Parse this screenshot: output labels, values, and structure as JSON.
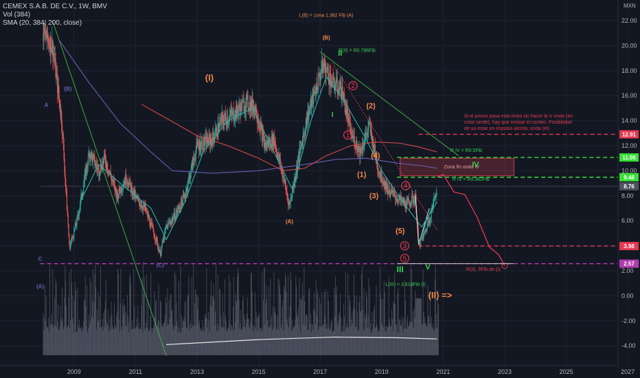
{
  "header": {
    "symbol_line": "CEMEX S.A.B. DE C.V., 1W, BMV",
    "volume_line": "Vol (384)",
    "sma_line": "SMA (20, 384, 200, close)"
  },
  "colors": {
    "background": "#131722",
    "grid": "#1f2330",
    "axis_text": "#b2b5be",
    "candle_up": "#26a69a",
    "candle_down": "#ef5350",
    "sma20": "#2bb3a8",
    "sma384": "#6a5fb0",
    "sma200": "#d84a4a",
    "wave_orange": "#f0894a",
    "wave_green": "#39d353",
    "projection": "#e53950",
    "resistance": "#e53950",
    "fib_green": "#38e038",
    "volume": "#7f8391",
    "volume_sma": "#e8e8e8"
  },
  "chart_data": {
    "type": "candlestick",
    "currency_label": "MXN",
    "x_ticks": [
      "2009",
      "2011",
      "2013",
      "2015",
      "2017",
      "2019",
      "2021",
      "2023",
      "2025",
      "2027"
    ],
    "y_ticks": [
      "22.00",
      "20.00",
      "18.00",
      "16.00",
      "14.00",
      "12.00",
      "10.00",
      "8.00",
      "6.00",
      "4.00",
      "2.00",
      "0.00",
      "-2.00",
      "-4.00"
    ],
    "ylim": [
      -4.8,
      23.5
    ],
    "xlim": [
      2007.9,
      2028.4
    ],
    "price_path": [
      [
        2008.0,
        21.0
      ],
      [
        2008.3,
        20.0
      ],
      [
        2008.6,
        14.0
      ],
      [
        2008.85,
        3.9
      ],
      [
        2009.1,
        6.0
      ],
      [
        2009.5,
        11.5
      ],
      [
        2009.8,
        10.0
      ],
      [
        2010.0,
        11.0
      ],
      [
        2010.4,
        8.0
      ],
      [
        2010.7,
        9.5
      ],
      [
        2011.0,
        7.8
      ],
      [
        2011.3,
        7.0
      ],
      [
        2011.6,
        5.0
      ],
      [
        2011.8,
        3.4
      ],
      [
        2012.0,
        5.5
      ],
      [
        2012.3,
        6.5
      ],
      [
        2012.6,
        8.0
      ],
      [
        2013.0,
        12.0
      ],
      [
        2013.5,
        12.5
      ],
      [
        2013.8,
        14.0
      ],
      [
        2014.2,
        14.5
      ],
      [
        2014.6,
        15.5
      ],
      [
        2014.9,
        15.0
      ],
      [
        2015.2,
        12.0
      ],
      [
        2015.5,
        12.5
      ],
      [
        2015.8,
        9.5
      ],
      [
        2016.0,
        7.2
      ],
      [
        2016.3,
        11.0
      ],
      [
        2016.6,
        14.5
      ],
      [
        2016.8,
        16.0
      ],
      [
        2017.1,
        18.5
      ],
      [
        2017.4,
        17.0
      ],
      [
        2017.7,
        16.5
      ],
      [
        2018.0,
        13.0
      ],
      [
        2018.3,
        11.5
      ],
      [
        2018.6,
        13.6
      ],
      [
        2018.9,
        10.0
      ],
      [
        2019.2,
        8.5
      ],
      [
        2019.5,
        7.8
      ],
      [
        2019.8,
        7.3
      ],
      [
        2020.1,
        7.8
      ],
      [
        2020.2,
        4.1
      ],
      [
        2020.4,
        5.0
      ],
      [
        2020.6,
        6.5
      ],
      [
        2020.8,
        8.76
      ]
    ],
    "sma20_path": [
      [
        2009.2,
        7.5
      ],
      [
        2009.8,
        10.5
      ],
      [
        2010.5,
        9.0
      ],
      [
        2011.5,
        7.0
      ],
      [
        2012.0,
        4.5
      ],
      [
        2012.6,
        7.5
      ],
      [
        2013.2,
        11.5
      ],
      [
        2014.0,
        14.0
      ],
      [
        2014.8,
        15.0
      ],
      [
        2015.6,
        11.0
      ],
      [
        2016.1,
        8.5
      ],
      [
        2016.7,
        14.0
      ],
      [
        2017.2,
        17.5
      ],
      [
        2017.8,
        15.5
      ],
      [
        2018.5,
        12.5
      ],
      [
        2019.0,
        10.0
      ],
      [
        2019.6,
        7.8
      ],
      [
        2020.3,
        5.5
      ],
      [
        2020.8,
        7.5
      ]
    ],
    "sma200_path": [
      [
        2011.2,
        15.3
      ],
      [
        2012.0,
        14.2
      ],
      [
        2013.0,
        12.8
      ],
      [
        2014.0,
        12.0
      ],
      [
        2015.0,
        11.0
      ],
      [
        2015.8,
        10.0
      ],
      [
        2016.5,
        10.2
      ],
      [
        2017.2,
        11.2
      ],
      [
        2018.0,
        12.0
      ],
      [
        2018.8,
        12.3
      ],
      [
        2019.6,
        12.2
      ],
      [
        2020.2,
        11.9
      ],
      [
        2020.8,
        11.5
      ]
    ],
    "sma384_path": [
      [
        2008.5,
        20.5
      ],
      [
        2009.5,
        17.0
      ],
      [
        2010.5,
        13.8
      ],
      [
        2011.5,
        11.5
      ],
      [
        2012.2,
        10.0
      ],
      [
        2013.5,
        9.8
      ],
      [
        2015.0,
        10.0
      ],
      [
        2016.5,
        10.5
      ],
      [
        2017.5,
        10.9
      ],
      [
        2018.5,
        11.0
      ],
      [
        2019.5,
        10.6
      ],
      [
        2020.3,
        10.4
      ],
      [
        2020.8,
        10.2
      ]
    ],
    "projection_path": [
      [
        2020.8,
        9.5
      ],
      [
        2021.0,
        9.7
      ],
      [
        2021.35,
        8.3
      ],
      [
        2021.7,
        8.1
      ],
      [
        2022.1,
        6.3
      ],
      [
        2022.5,
        3.9
      ],
      [
        2022.8,
        3.3
      ],
      [
        2023.0,
        2.4
      ]
    ],
    "horizontal_levels": [
      {
        "label": "12.91",
        "value": 12.91,
        "color": "#e53950",
        "style": "dashed",
        "x_start": 2020.2
      },
      {
        "label": "11.06",
        "value": 11.06,
        "color": "#38e038",
        "style": "dashed",
        "x_start": 2019.5
      },
      {
        "label": "9.48",
        "value": 9.48,
        "color": "#38e038",
        "style": "dashed",
        "x_start": 2019.5
      },
      {
        "label": "8.76",
        "value": 8.76,
        "color": "#4c525e",
        "style": "solid",
        "x_start": 2007.9
      },
      {
        "label": "3.98",
        "value": 3.98,
        "color": "#e53950",
        "style": "dashed",
        "x_start": 2020.2
      },
      {
        "label": "2.57",
        "value": 2.57,
        "color": "#b03cb0",
        "style": "dashed",
        "x_start": 2007.9
      }
    ],
    "target_zone": {
      "label": "Zona fin onda IV",
      "x_start": 2019.6,
      "x_end": 2023.3,
      "y_low": 9.6,
      "y_high": 11.0
    },
    "volume_sma_path": [
      [
        2012.0,
        -3.9
      ],
      [
        2015.0,
        -3.5
      ],
      [
        2017.5,
        -3.3
      ],
      [
        2019.5,
        -3.35
      ],
      [
        2020.8,
        -3.45
      ]
    ],
    "wave_labels": [
      {
        "text": "(I)",
        "x": 2013.4,
        "y": 17.2,
        "color": "#f0894a",
        "size": 13
      },
      {
        "text": "(B)",
        "x": 2017.2,
        "y": 20.5,
        "color": "#f0894a",
        "size": 8
      },
      {
        "text": "II",
        "x": 2017.65,
        "y": 19.2,
        "color": "#39d353",
        "size": 11
      },
      {
        "text": "I",
        "x": 2017.4,
        "y": 14.3,
        "color": "#39d353",
        "size": 10
      },
      {
        "text": "(2)",
        "x": 2018.65,
        "y": 15.0,
        "color": "#f0894a",
        "size": 11
      },
      {
        "text": "(4)",
        "x": 2018.8,
        "y": 11.0,
        "color": "#f0894a",
        "size": 11
      },
      {
        "text": "(1)",
        "x": 2018.35,
        "y": 9.5,
        "color": "#f0894a",
        "size": 11
      },
      {
        "text": "(3)",
        "x": 2018.75,
        "y": 7.8,
        "color": "#f0894a",
        "size": 11
      },
      {
        "text": "(5)",
        "x": 2019.6,
        "y": 5.0,
        "color": "#f0894a",
        "size": 11
      },
      {
        "text": "(A)",
        "x": 2016.0,
        "y": 5.8,
        "color": "#f0894a",
        "size": 8
      },
      {
        "text": "IV",
        "x": 2022.05,
        "y": 10.3,
        "color": "#39d353",
        "size": 11
      },
      {
        "text": "III",
        "x": 2019.6,
        "y": 1.9,
        "color": "#39d353",
        "size": 12
      },
      {
        "text": "V",
        "x": 2020.5,
        "y": 2.1,
        "color": "#39d353",
        "size": 11
      },
      {
        "text": "(II) =>",
        "x": 2020.9,
        "y": -0.2,
        "color": "#f0894a",
        "size": 13
      },
      {
        "text": "A",
        "x": 2008.1,
        "y": 15.1,
        "color": "#6a5fb0",
        "size": 8
      },
      {
        "text": "(B)",
        "x": 2008.8,
        "y": 16.4,
        "color": "#6a5fb0",
        "size": 8
      },
      {
        "text": "C",
        "x": 2007.9,
        "y": 2.8,
        "color": "#6a5fb0",
        "size": 8
      },
      {
        "text": "(A)",
        "x": 2007.9,
        "y": 0.6,
        "color": "#6a5fb0",
        "size": 8
      },
      {
        "text": "(C)",
        "x": 2011.8,
        "y": 2.3,
        "color": "#6a5fb0",
        "size": 8
      }
    ],
    "circle_labels": [
      {
        "text": "2",
        "x": 2018.07,
        "y": 16.8,
        "color": "#e53950"
      },
      {
        "text": "1",
        "x": 2017.9,
        "y": 12.85,
        "color": "#e53950"
      },
      {
        "text": "4",
        "x": 2019.78,
        "y": 8.8,
        "color": "#e53950"
      },
      {
        "text": "3",
        "x": 2019.75,
        "y": 4.0,
        "color": "#e53950"
      },
      {
        "text": "5",
        "x": 2019.75,
        "y": 3.0,
        "color": "#e53950"
      }
    ],
    "annotations": [
      {
        "text": "L(B) = zona 1.382 Fib (A)",
        "x": 2017.2,
        "y": 22.3,
        "color": "#f0894a",
        "anchor": "middle"
      },
      {
        "text": "R(II) = R0.786Fib",
        "x": 2018.2,
        "y": 19.5,
        "color": "#39d353",
        "anchor": "middle"
      },
      {
        "text": "R IV = R0.5Fib",
        "x": 2021.75,
        "y": 11.5,
        "color": "#39d353",
        "anchor": "middle"
      },
      {
        "text": "R IV = R0.382Fib",
        "x": 2021.9,
        "y": 9.2,
        "color": "#39d353",
        "anchor": "middle"
      },
      {
        "text": "L(III) = 3.618Fib (I)",
        "x": 2019.78,
        "y": 0.8,
        "color": "#39d353",
        "anchor": "middle"
      },
      {
        "text": "R(II) .5Fib de (I)",
        "x": 2022.3,
        "y": 2.0,
        "color": "#e53950",
        "anchor": "middle"
      }
    ],
    "note_lines": [
      "Si el precio pasa esta línea sin hacer la V onda (en",
      "color verde), hay que revisar el conteo. Posibilidad",
      "de ya estar en impulso alcista; onda (III)"
    ],
    "zone_label": "Zona fin onda IV"
  }
}
